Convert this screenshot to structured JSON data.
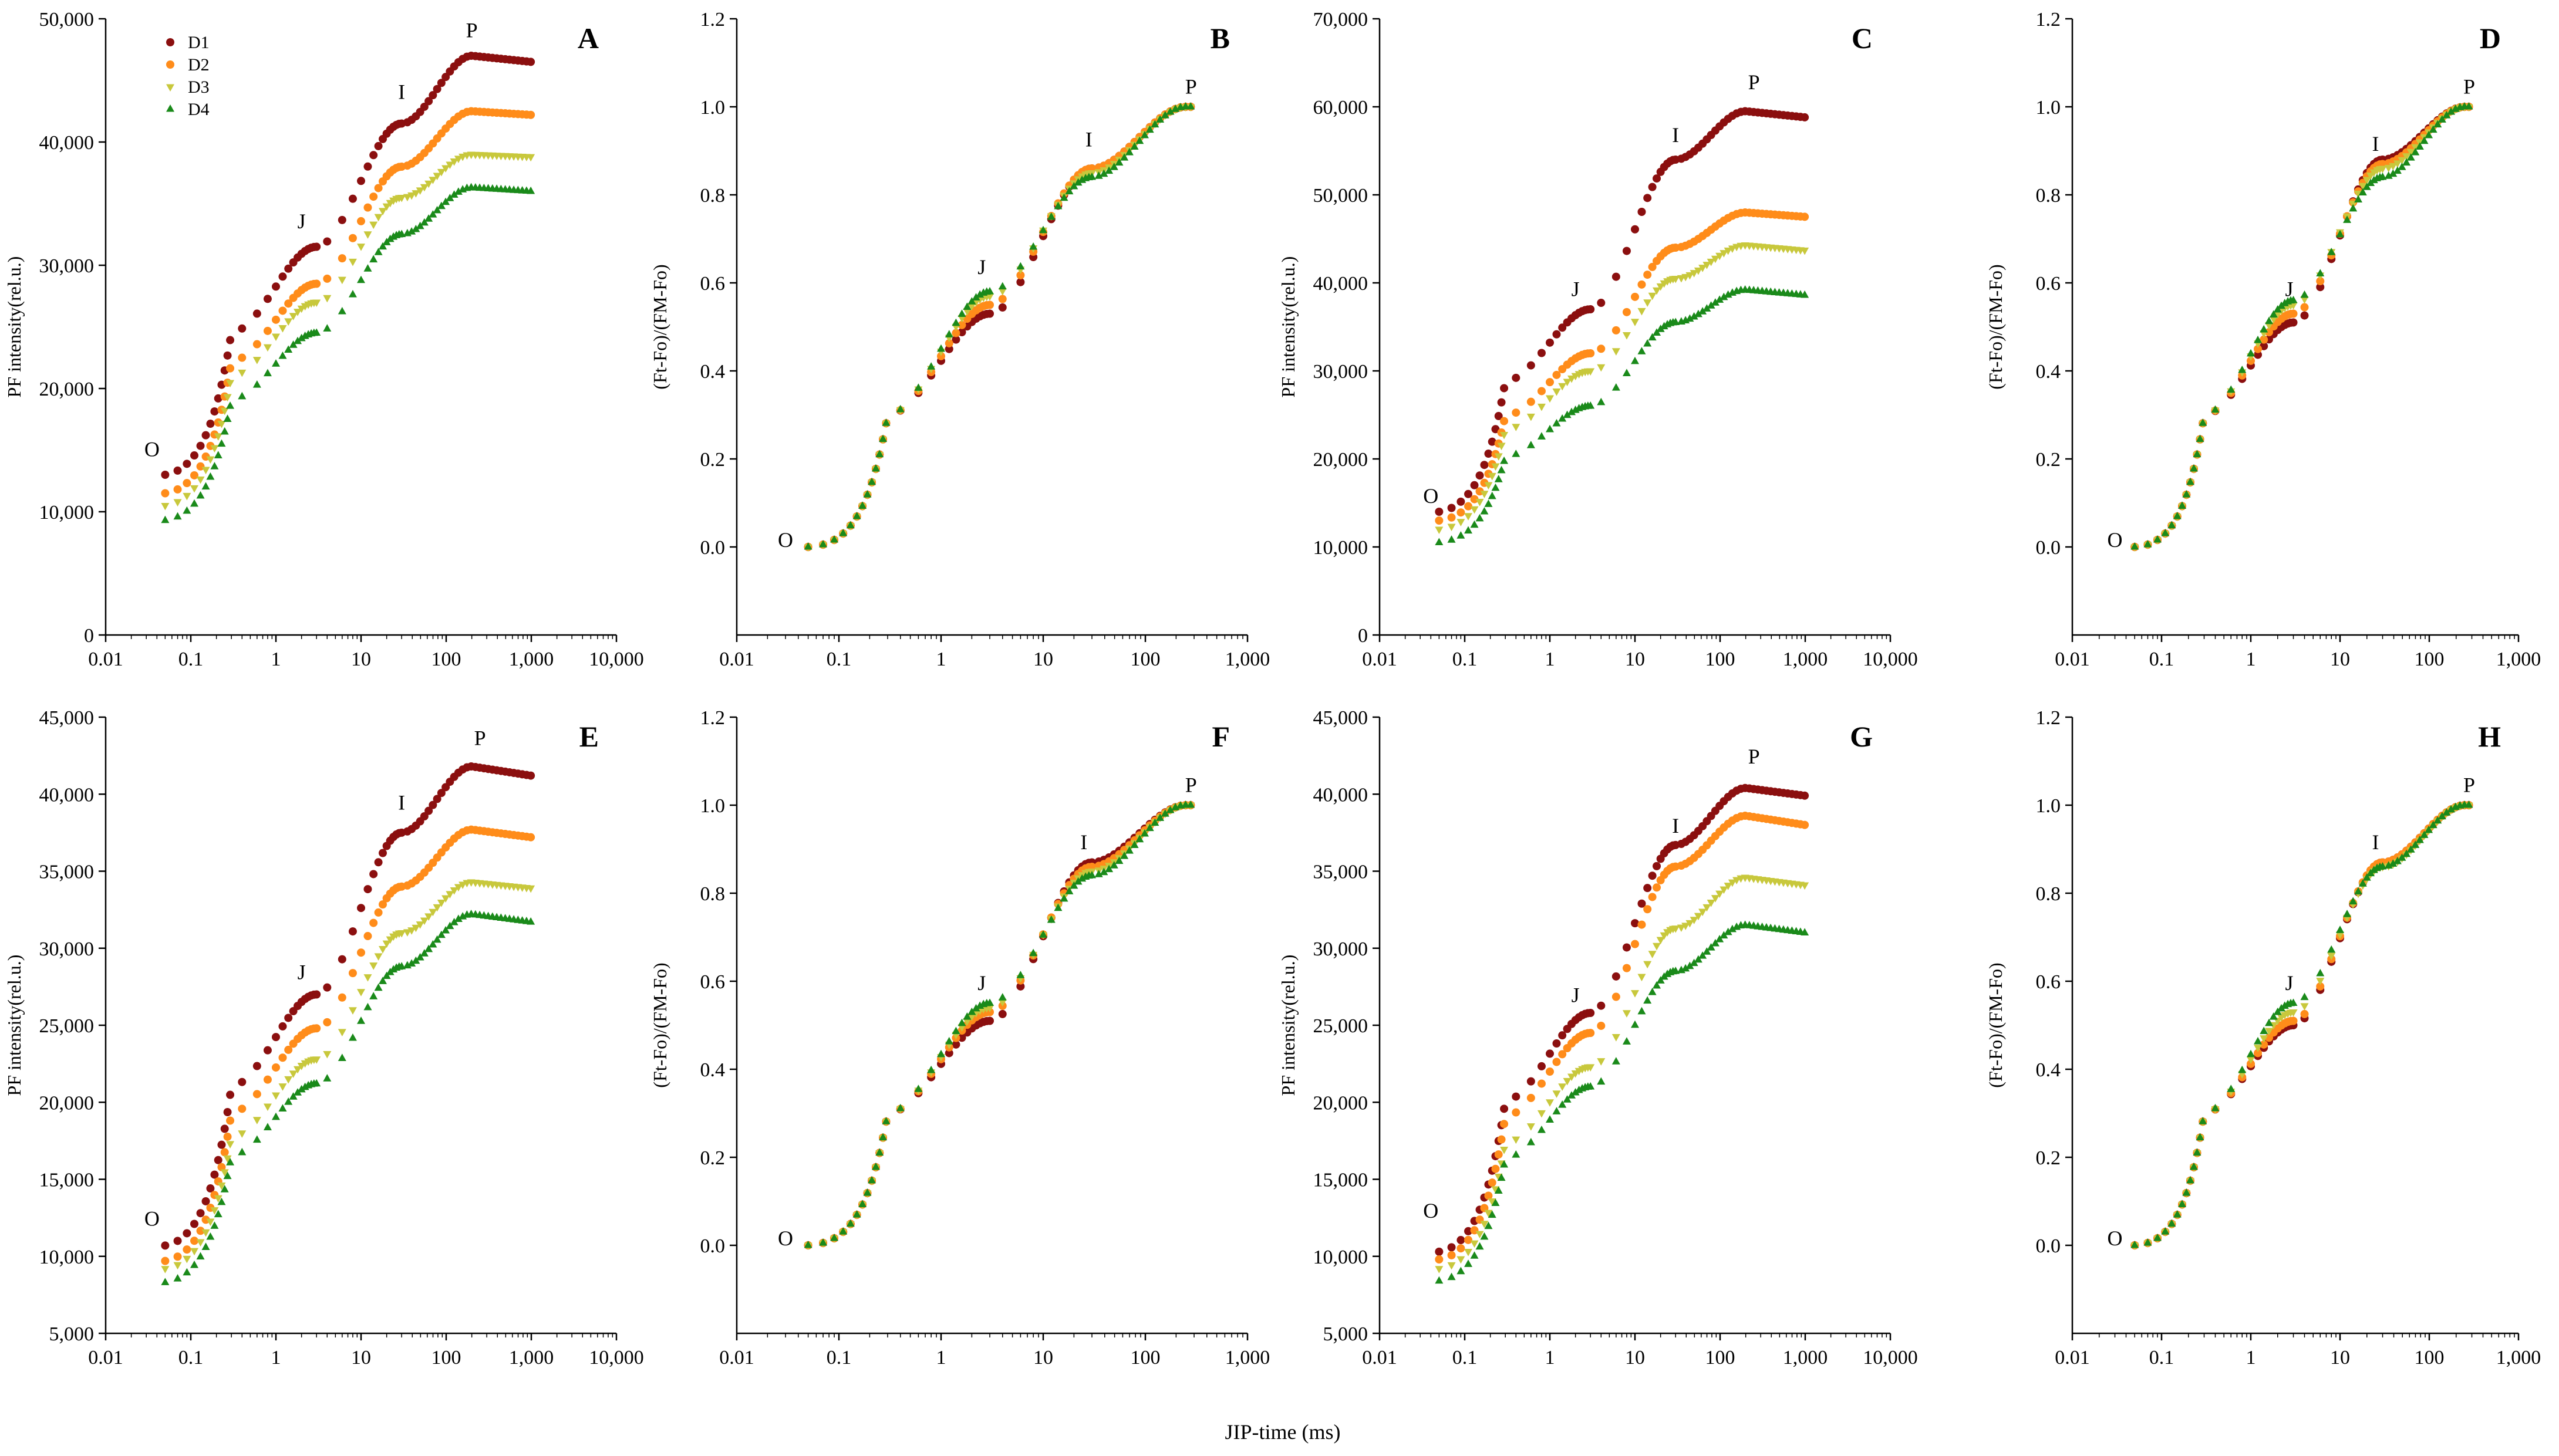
{
  "figure": {
    "shared_xlabel": "JIP-time (ms)",
    "point_labels": {
      "O": "O",
      "J": "J",
      "I": "I",
      "P": "P"
    },
    "legend": [
      "D1",
      "D2",
      "D3",
      "D4"
    ],
    "series_colors": {
      "D1": "#8b0f0f",
      "D2": "#ff8c1a",
      "D3": "#c8c83c",
      "D4": "#1a8a1a"
    },
    "series_markers": {
      "D1": "circle",
      "D2": "circle",
      "D3": "triangle-down",
      "D4": "triangle-up"
    }
  },
  "chart_data": [
    {
      "panel": "A",
      "type": "scatter",
      "title": "A",
      "xscale": "log",
      "ylabel": "PF intensity(rel.u.)",
      "xlim": [
        0.01,
        10000
      ],
      "xticks": [
        0.01,
        0.1,
        1,
        10,
        100,
        1000,
        10000
      ],
      "xtick_labels": [
        "0.01",
        "0.1",
        "1",
        "10",
        "100",
        "1,000",
        "10,000"
      ],
      "ylim": [
        0,
        50000
      ],
      "yticks": [
        0,
        10000,
        20000,
        30000,
        40000,
        50000
      ],
      "ytick_labels": [
        "0",
        "10,000",
        "20,000",
        "30,000",
        "40,000",
        "50,000"
      ],
      "annotations": [
        {
          "text": "O",
          "x": 0.035,
          "y": 14500
        },
        {
          "text": "J",
          "x": 2,
          "y": 33000
        },
        {
          "text": "I",
          "x": 30,
          "y": 43500
        },
        {
          "text": "P",
          "x": 200,
          "y": 48500
        }
      ],
      "legend": true,
      "series": [
        {
          "name": "D1",
          "O": 13000,
          "J": 31500,
          "I": 41500,
          "P": 47000,
          "end": 46500
        },
        {
          "name": "D2",
          "O": 11500,
          "J": 28500,
          "I": 38000,
          "P": 42500,
          "end": 42200
        },
        {
          "name": "D3",
          "O": 10500,
          "J": 27000,
          "I": 35500,
          "P": 39000,
          "end": 38800
        },
        {
          "name": "D4",
          "O": 9300,
          "J": 24500,
          "I": 32500,
          "P": 36300,
          "end": 36000
        }
      ]
    },
    {
      "panel": "B",
      "type": "scatter",
      "title": "B",
      "xscale": "log",
      "normalized": true,
      "ylabel": "(Ft-Fo)/(FM-Fo)",
      "xlim": [
        0.01,
        1000
      ],
      "xticks": [
        0.01,
        0.1,
        1,
        10,
        100,
        1000
      ],
      "xtick_labels": [
        "0.01",
        "0.1",
        "1",
        "10",
        "100",
        "1,000"
      ],
      "ylim": [
        -0.2,
        1.2
      ],
      "yticks": [
        0,
        0.2,
        0.4,
        0.6,
        0.8,
        1.0,
        1.2
      ],
      "ytick_labels": [
        "0.0",
        "0.2",
        "0.4",
        "0.6",
        "0.8",
        "1.0",
        "1.2"
      ],
      "annotations": [
        {
          "text": "O",
          "x": 0.03,
          "y": 0.0
        },
        {
          "text": "J",
          "x": 2.5,
          "y": 0.62
        },
        {
          "text": "I",
          "x": 28,
          "y": 0.91
        },
        {
          "text": "P",
          "x": 280,
          "y": 1.03
        }
      ],
      "series": [
        {
          "name": "D1",
          "J": 0.53,
          "I": 0.86
        },
        {
          "name": "D2",
          "J": 0.55,
          "I": 0.86
        },
        {
          "name": "D3",
          "J": 0.57,
          "I": 0.85
        },
        {
          "name": "D4",
          "J": 0.58,
          "I": 0.84
        }
      ]
    },
    {
      "panel": "C",
      "type": "scatter",
      "title": "C",
      "xscale": "log",
      "ylabel": "PF intensity(rel.u.)",
      "xlim": [
        0.01,
        10000
      ],
      "xticks": [
        0.01,
        0.1,
        1,
        10,
        100,
        1000,
        10000
      ],
      "xtick_labels": [
        "0.01",
        "0.1",
        "1",
        "10",
        "100",
        "1,000",
        "10,000"
      ],
      "ylim": [
        0,
        70000
      ],
      "yticks": [
        0,
        10000,
        20000,
        30000,
        40000,
        50000,
        60000,
        70000
      ],
      "ytick_labels": [
        "0",
        "10,000",
        "20,000",
        "30,000",
        "40,000",
        "50,000",
        "60,000",
        "70,000"
      ],
      "annotations": [
        {
          "text": "O",
          "x": 0.04,
          "y": 15000
        },
        {
          "text": "J",
          "x": 2,
          "y": 38500
        },
        {
          "text": "I",
          "x": 30,
          "y": 56000
        },
        {
          "text": "P",
          "x": 250,
          "y": 62000
        }
      ],
      "series": [
        {
          "name": "D1",
          "O": 14000,
          "J": 37000,
          "I": 54000,
          "P": 59500,
          "end": 58800
        },
        {
          "name": "D2",
          "O": 13000,
          "J": 32000,
          "I": 44000,
          "P": 48000,
          "end": 47500
        },
        {
          "name": "D3",
          "O": 12000,
          "J": 30000,
          "I": 40500,
          "P": 44300,
          "end": 43700
        },
        {
          "name": "D4",
          "O": 10500,
          "J": 26000,
          "I": 35500,
          "P": 39200,
          "end": 38600
        }
      ]
    },
    {
      "panel": "D",
      "type": "scatter",
      "title": "D",
      "xscale": "log",
      "normalized": true,
      "ylabel": "(Ft-Fo)/(FM-Fo)",
      "xlim": [
        0.01,
        1000
      ],
      "xticks": [
        0.01,
        0.1,
        1,
        10,
        100,
        1000
      ],
      "xtick_labels": [
        "0.01",
        "0.1",
        "1",
        "10",
        "100",
        "1,000"
      ],
      "ylim": [
        -0.2,
        1.2
      ],
      "yticks": [
        0,
        0.2,
        0.4,
        0.6,
        0.8,
        1.0,
        1.2
      ],
      "ytick_labels": [
        "0.0",
        "0.2",
        "0.4",
        "0.6",
        "0.8",
        "1.0",
        "1.2"
      ],
      "annotations": [
        {
          "text": "O",
          "x": 0.03,
          "y": 0.0
        },
        {
          "text": "J",
          "x": 2.7,
          "y": 0.57
        },
        {
          "text": "I",
          "x": 25,
          "y": 0.9
        },
        {
          "text": "P",
          "x": 280,
          "y": 1.03
        }
      ],
      "series": [
        {
          "name": "D1",
          "J": 0.51,
          "I": 0.88
        },
        {
          "name": "D2",
          "J": 0.53,
          "I": 0.87
        },
        {
          "name": "D3",
          "J": 0.55,
          "I": 0.86
        },
        {
          "name": "D4",
          "J": 0.56,
          "I": 0.84
        }
      ]
    },
    {
      "panel": "E",
      "type": "scatter",
      "title": "E",
      "xscale": "log",
      "ylabel": "PF intensity(rel.u.)",
      "xlim": [
        0.01,
        10000
      ],
      "xticks": [
        0.01,
        0.1,
        1,
        10,
        100,
        1000,
        10000
      ],
      "xtick_labels": [
        "0.01",
        "0.1",
        "1",
        "10",
        "100",
        "1,000",
        "10,000"
      ],
      "ylim": [
        5000,
        45000
      ],
      "yticks": [
        5000,
        10000,
        15000,
        20000,
        25000,
        30000,
        35000,
        40000,
        45000
      ],
      "ytick_labels": [
        "5,000",
        "10,000",
        "15,000",
        "20,000",
        "25,000",
        "30,000",
        "35,000",
        "40,000",
        "45,000"
      ],
      "annotations": [
        {
          "text": "O",
          "x": 0.035,
          "y": 12000
        },
        {
          "text": "J",
          "x": 2,
          "y": 28000
        },
        {
          "text": "I",
          "x": 30,
          "y": 39000
        },
        {
          "text": "P",
          "x": 250,
          "y": 43200
        }
      ],
      "series": [
        {
          "name": "D1",
          "O": 10700,
          "J": 27000,
          "I": 37500,
          "P": 41800,
          "end": 41200
        },
        {
          "name": "D2",
          "O": 9700,
          "J": 24800,
          "I": 34000,
          "P": 37700,
          "end": 37200
        },
        {
          "name": "D3",
          "O": 9200,
          "J": 22800,
          "I": 31000,
          "P": 34300,
          "end": 33900
        },
        {
          "name": "D4",
          "O": 8300,
          "J": 21200,
          "I": 28800,
          "P": 32200,
          "end": 31700
        }
      ]
    },
    {
      "panel": "F",
      "type": "scatter",
      "title": "F",
      "xscale": "log",
      "normalized": true,
      "ylabel": "(Ft-Fo)/(FM-Fo)",
      "xlim": [
        0.01,
        1000
      ],
      "xticks": [
        0.01,
        0.1,
        1,
        10,
        100,
        1000
      ],
      "xtick_labels": [
        "0.01",
        "0.1",
        "1",
        "10",
        "100",
        "1,000"
      ],
      "ylim": [
        -0.2,
        1.2
      ],
      "yticks": [
        0,
        0.2,
        0.4,
        0.6,
        0.8,
        1.0,
        1.2
      ],
      "ytick_labels": [
        "0.0",
        "0.2",
        "0.4",
        "0.6",
        "0.8",
        "1.0",
        "1.2"
      ],
      "annotations": [
        {
          "text": "O",
          "x": 0.03,
          "y": 0.0
        },
        {
          "text": "J",
          "x": 2.5,
          "y": 0.58
        },
        {
          "text": "I",
          "x": 25,
          "y": 0.9
        },
        {
          "text": "P",
          "x": 280,
          "y": 1.03
        }
      ],
      "series": [
        {
          "name": "D1",
          "J": 0.51,
          "I": 0.87
        },
        {
          "name": "D2",
          "J": 0.53,
          "I": 0.86
        },
        {
          "name": "D3",
          "J": 0.54,
          "I": 0.85
        },
        {
          "name": "D4",
          "J": 0.55,
          "I": 0.84
        }
      ]
    },
    {
      "panel": "G",
      "type": "scatter",
      "title": "G",
      "xscale": "log",
      "ylabel": "PF intensity(rel.u.)",
      "xlim": [
        0.01,
        10000
      ],
      "xticks": [
        0.01,
        0.1,
        1,
        10,
        100,
        1000,
        10000
      ],
      "xtick_labels": [
        "0.01",
        "0.1",
        "1",
        "10",
        "100",
        "1,000",
        "10,000"
      ],
      "ylim": [
        5000,
        45000
      ],
      "yticks": [
        5000,
        10000,
        15000,
        20000,
        25000,
        30000,
        35000,
        40000,
        45000
      ],
      "ytick_labels": [
        "5,000",
        "10,000",
        "15,000",
        "20,000",
        "25,000",
        "30,000",
        "35,000",
        "40,000",
        "45,000"
      ],
      "annotations": [
        {
          "text": "O",
          "x": 0.04,
          "y": 12500
        },
        {
          "text": "J",
          "x": 2,
          "y": 26500
        },
        {
          "text": "I",
          "x": 30,
          "y": 37500
        },
        {
          "text": "P",
          "x": 250,
          "y": 42000
        }
      ],
      "series": [
        {
          "name": "D1",
          "O": 10300,
          "J": 25800,
          "I": 36700,
          "P": 40400,
          "end": 39900
        },
        {
          "name": "D2",
          "O": 9800,
          "J": 24500,
          "I": 35300,
          "P": 38600,
          "end": 38000
        },
        {
          "name": "D3",
          "O": 9200,
          "J": 22300,
          "I": 31300,
          "P": 34600,
          "end": 34100
        },
        {
          "name": "D4",
          "O": 8400,
          "J": 21000,
          "I": 28500,
          "P": 31500,
          "end": 31000
        }
      ]
    },
    {
      "panel": "H",
      "type": "scatter",
      "title": "H",
      "xscale": "log",
      "normalized": true,
      "ylabel": "(Ft-Fo)/(FM-Fo)",
      "xlim": [
        0.01,
        1000
      ],
      "xticks": [
        0.01,
        0.1,
        1,
        10,
        100,
        1000
      ],
      "xtick_labels": [
        "0.01",
        "0.1",
        "1",
        "10",
        "100",
        "1,000"
      ],
      "ylim": [
        -0.2,
        1.2
      ],
      "yticks": [
        0,
        0.2,
        0.4,
        0.6,
        0.8,
        1.0,
        1.2
      ],
      "ytick_labels": [
        "0.0",
        "0.2",
        "0.4",
        "0.6",
        "0.8",
        "1.0",
        "1.2"
      ],
      "annotations": [
        {
          "text": "O",
          "x": 0.03,
          "y": 0.0
        },
        {
          "text": "J",
          "x": 2.7,
          "y": 0.58
        },
        {
          "text": "I",
          "x": 25,
          "y": 0.9
        },
        {
          "text": "P",
          "x": 280,
          "y": 1.03
        }
      ],
      "series": [
        {
          "name": "D1",
          "J": 0.5,
          "I": 0.87
        },
        {
          "name": "D2",
          "J": 0.51,
          "I": 0.87
        },
        {
          "name": "D3",
          "J": 0.53,
          "I": 0.86
        },
        {
          "name": "D4",
          "J": 0.55,
          "I": 0.86
        }
      ]
    }
  ]
}
